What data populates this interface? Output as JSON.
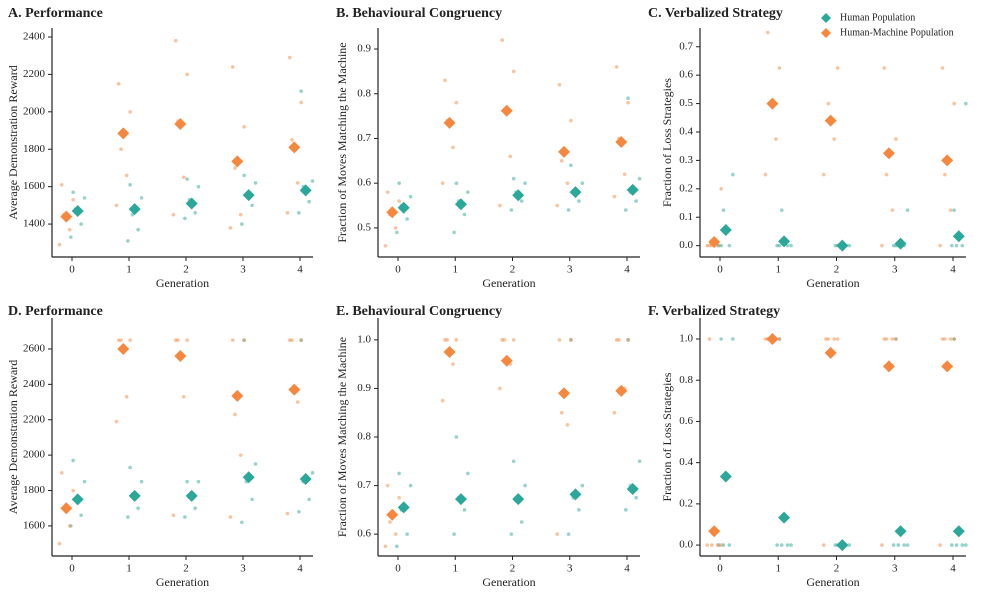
{
  "chart_data": [
    {
      "type": "scatter",
      "title": "A.  Performance",
      "xlabel": "Generation",
      "ylabel": "Average Demonstration Reward",
      "categories": [
        0,
        1,
        2,
        3,
        4
      ],
      "ylim": [
        1224,
        2448
      ],
      "yticks": [
        1400,
        1600,
        1800,
        2000,
        2200,
        2400
      ],
      "series": [
        {
          "name": "Human Population",
          "color": "#2ca89a",
          "values": [
            1470,
            1480,
            1510,
            1555,
            1580
          ],
          "points": [
            [
              1330,
              1400,
              1480,
              1540,
              1570
            ],
            [
              1310,
              1370,
              1450,
              1540,
              1610
            ],
            [
              1430,
              1460,
              1530,
              1600,
              1640
            ],
            [
              1400,
              1500,
              1560,
              1620,
              1660
            ],
            [
              1460,
              1520,
              1600,
              1630,
              2110
            ]
          ]
        },
        {
          "name": "Human-Machine Population",
          "color": "#f5883e",
          "values": [
            1440,
            1885,
            1935,
            1735,
            1810
          ],
          "points": [
            [
              1290,
              1370,
              1450,
              1530,
              1610
            ],
            [
              1500,
              1660,
              1800,
              2000,
              2150
            ],
            [
              1450,
              1650,
              1950,
              2200,
              2380
            ],
            [
              1380,
              1450,
              1700,
              1920,
              2240
            ],
            [
              1460,
              1620,
              1850,
              2050,
              2290
            ]
          ]
        }
      ]
    },
    {
      "type": "scatter",
      "title": "B.  Behavioural Congruency",
      "xlabel": "Generation",
      "ylabel": "Fraction of Moves Matching the Machine",
      "categories": [
        0,
        1,
        2,
        3,
        4
      ],
      "ylim": [
        0.435,
        0.947
      ],
      "yticks": [
        0.5,
        0.6,
        0.7,
        0.8,
        0.9
      ],
      "series": [
        {
          "name": "Human Population",
          "color": "#2ca89a",
          "values": [
            0.545,
            0.553,
            0.573,
            0.58,
            0.585
          ],
          "points": [
            [
              0.49,
              0.52,
              0.55,
              0.57,
              0.6
            ],
            [
              0.49,
              0.53,
              0.56,
              0.58,
              0.6
            ],
            [
              0.54,
              0.56,
              0.58,
              0.6,
              0.61
            ],
            [
              0.54,
              0.56,
              0.58,
              0.6,
              0.64
            ],
            [
              0.54,
              0.56,
              0.58,
              0.61,
              0.79
            ]
          ]
        },
        {
          "name": "Human-Machine Population",
          "color": "#f5883e",
          "values": [
            0.535,
            0.735,
            0.762,
            0.67,
            0.692
          ],
          "points": [
            [
              0.46,
              0.5,
              0.53,
              0.56,
              0.58
            ],
            [
              0.6,
              0.68,
              0.74,
              0.78,
              0.83
            ],
            [
              0.55,
              0.66,
              0.76,
              0.85,
              0.92
            ],
            [
              0.55,
              0.6,
              0.65,
              0.74,
              0.82
            ],
            [
              0.57,
              0.62,
              0.7,
              0.78,
              0.86
            ]
          ]
        }
      ]
    },
    {
      "type": "scatter",
      "title": "C.  Verbalized Strategy",
      "xlabel": "Generation",
      "ylabel": "Fraction of Loss Strategies",
      "legend": "upper right",
      "categories": [
        0,
        1,
        2,
        3,
        4
      ],
      "ylim": [
        -0.04,
        0.766
      ],
      "yticks": [
        {
          "value": 0,
          "label": "0.0"
        },
        0.1,
        0.2,
        0.3,
        0.4,
        0.5,
        0.6,
        0.7
      ],
      "series": [
        {
          "name": "Human Population",
          "color": "#2ca89a",
          "values": [
            0.055,
            0.015,
            0.0,
            0.007,
            0.033
          ],
          "points": [
            [
              0,
              0,
              0.125,
              0.25,
              0
            ],
            [
              0,
              0,
              0.125,
              0,
              0
            ],
            [
              0,
              0,
              0,
              0,
              0
            ],
            [
              0,
              0,
              0,
              0.125,
              0
            ],
            [
              0,
              0,
              0,
              0.5,
              0.125
            ]
          ]
        },
        {
          "name": "Human-Machine Population",
          "color": "#f5883e",
          "values": [
            0.013,
            0.5,
            0.44,
            0.325,
            0.3
          ],
          "points": [
            [
              0,
              0,
              0,
              0.2,
              0
            ],
            [
              0.25,
              0.375,
              0.5,
              0.625,
              0.75
            ],
            [
              0.25,
              0.375,
              0.5,
              0.625,
              0.75
            ],
            [
              0,
              0.125,
              0.25,
              0.375,
              0.625
            ],
            [
              0,
              0.125,
              0.25,
              0.5,
              0.625
            ]
          ]
        }
      ]
    },
    {
      "type": "scatter",
      "title": "D.  Performance",
      "xlabel": "Generation",
      "ylabel": "Average Demonstration Reward",
      "categories": [
        0,
        1,
        2,
        3,
        4
      ],
      "ylim": [
        1430,
        2775
      ],
      "yticks": [
        1600,
        1800,
        2000,
        2200,
        2400,
        2600
      ],
      "series": [
        {
          "name": "Human Population",
          "color": "#2ca89a",
          "values": [
            1750,
            1770,
            1770,
            1875,
            1865
          ],
          "points": [
            [
              1600,
              1660,
              1750,
              1850,
              1970
            ],
            [
              1650,
              1700,
              1780,
              1850,
              1930
            ],
            [
              1650,
              1700,
              1760,
              1850,
              1850
            ],
            [
              1620,
              1750,
              1850,
              1950,
              2650
            ],
            [
              1680,
              1750,
              1850,
              1900,
              2650
            ]
          ]
        },
        {
          "name": "Human-Machine Population",
          "color": "#f5883e",
          "values": [
            1700,
            2600,
            2560,
            2335,
            2370
          ],
          "points": [
            [
              1500,
              1600,
              1700,
              1800,
              1900
            ],
            [
              2190,
              2330,
              2650,
              2650,
              2650
            ],
            [
              1660,
              2330,
              2650,
              2650,
              2650
            ],
            [
              1650,
              2000,
              2230,
              2650,
              2650
            ],
            [
              1670,
              2300,
              2650,
              2650,
              2650
            ]
          ]
        }
      ]
    },
    {
      "type": "scatter",
      "title": "E.  Behavioural Congruency",
      "xlabel": "Generation",
      "ylabel": "Fraction of Moves Matching the Machine",
      "categories": [
        0,
        1,
        2,
        3,
        4
      ],
      "ylim": [
        0.555,
        1.045
      ],
      "yticks": [
        0.6,
        0.7,
        0.8,
        0.9,
        {
          "value": 1,
          "label": "1.0"
        }
      ],
      "series": [
        {
          "name": "Human Population",
          "color": "#2ca89a",
          "values": [
            0.655,
            0.672,
            0.672,
            0.682,
            0.693
          ],
          "points": [
            [
              0.575,
              0.6,
              0.65,
              0.7,
              0.725
            ],
            [
              0.6,
              0.65,
              0.675,
              0.725,
              0.8
            ],
            [
              0.6,
              0.625,
              0.675,
              0.7,
              0.75
            ],
            [
              0.6,
              0.65,
              0.675,
              0.7,
              1.0
            ],
            [
              0.65,
              0.675,
              0.7,
              0.75,
              1.0
            ]
          ]
        },
        {
          "name": "Human-Machine Population",
          "color": "#f5883e",
          "values": [
            0.64,
            0.975,
            0.957,
            0.89,
            0.895
          ],
          "points": [
            [
              0.575,
              0.6,
              0.625,
              0.675,
              0.7
            ],
            [
              0.875,
              0.95,
              1.0,
              1.0,
              1.0
            ],
            [
              0.9,
              0.95,
              1.0,
              1.0,
              1.0
            ],
            [
              0.6,
              0.825,
              0.85,
              1.0,
              1.0
            ],
            [
              0.85,
              0.9,
              1.0,
              1.0,
              1.0
            ]
          ]
        }
      ]
    },
    {
      "type": "scatter",
      "title": "F.  Verbalized Strategy",
      "xlabel": "Generation",
      "ylabel": "Fraction of Loss Strategies",
      "categories": [
        0,
        1,
        2,
        3,
        4
      ],
      "ylim": [
        -0.053,
        1.102
      ],
      "yticks": [
        {
          "value": 0,
          "label": "0.0"
        },
        0.2,
        0.4,
        0.6,
        0.8,
        {
          "value": 1,
          "label": "1.0"
        }
      ],
      "series": [
        {
          "name": "Human Population",
          "color": "#2ca89a",
          "values": [
            0.333,
            0.133,
            0.0,
            0.067,
            0.067
          ],
          "points": [
            [
              0,
              0,
              0,
              1,
              1
            ],
            [
              0,
              0,
              0,
              0,
              1
            ],
            [
              0,
              0,
              0,
              0,
              0
            ],
            [
              0,
              0,
              0,
              0,
              1
            ],
            [
              0,
              0,
              0,
              0,
              1
            ]
          ]
        },
        {
          "name": "Human-Machine Population",
          "color": "#f5883e",
          "values": [
            0.067,
            1.0,
            0.933,
            0.867,
            0.867
          ],
          "points": [
            [
              0,
              0,
              0,
              0,
              1
            ],
            [
              1,
              1,
              1,
              1,
              1
            ],
            [
              0,
              1,
              1,
              1,
              1
            ],
            [
              0,
              1,
              1,
              1,
              1
            ],
            [
              0,
              1,
              1,
              1,
              1
            ]
          ]
        }
      ]
    }
  ]
}
